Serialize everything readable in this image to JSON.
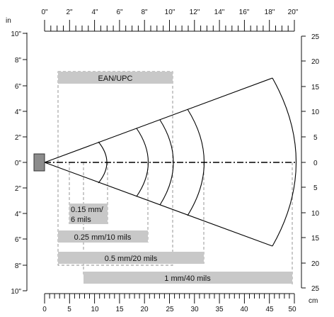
{
  "diagram": {
    "top_axis": {
      "unit": "in",
      "labels": [
        "0\"",
        "2\"",
        "4\"",
        "6\"",
        "8\"",
        "10\"",
        "12\"",
        "14\"",
        "16\"",
        "18\"",
        "20\""
      ]
    },
    "bottom_axis": {
      "unit": "cm",
      "labels": [
        "0",
        "5",
        "10",
        "15",
        "20",
        "25",
        "30",
        "35",
        "40",
        "45",
        "50"
      ]
    },
    "left_axis": {
      "labels": [
        "10\"",
        "8\"",
        "6\"",
        "4\"",
        "2\"",
        "0\"",
        "2\"",
        "4\"",
        "6\"",
        "8\"",
        "10\""
      ]
    },
    "right_axis": {
      "labels": [
        "25",
        "20",
        "15",
        "10",
        "5",
        "0",
        "5",
        "10",
        "15",
        "20",
        "25"
      ]
    },
    "barcode_ranges": [
      {
        "label": "EAN/UPC"
      },
      {
        "label_line1": "0.15 mm/",
        "label_line2": "6 mils"
      },
      {
        "label": "0.25 mm/10 mils"
      },
      {
        "label": "0.5 mm/20 mils"
      },
      {
        "label": "1 mm/40 mils"
      }
    ]
  }
}
